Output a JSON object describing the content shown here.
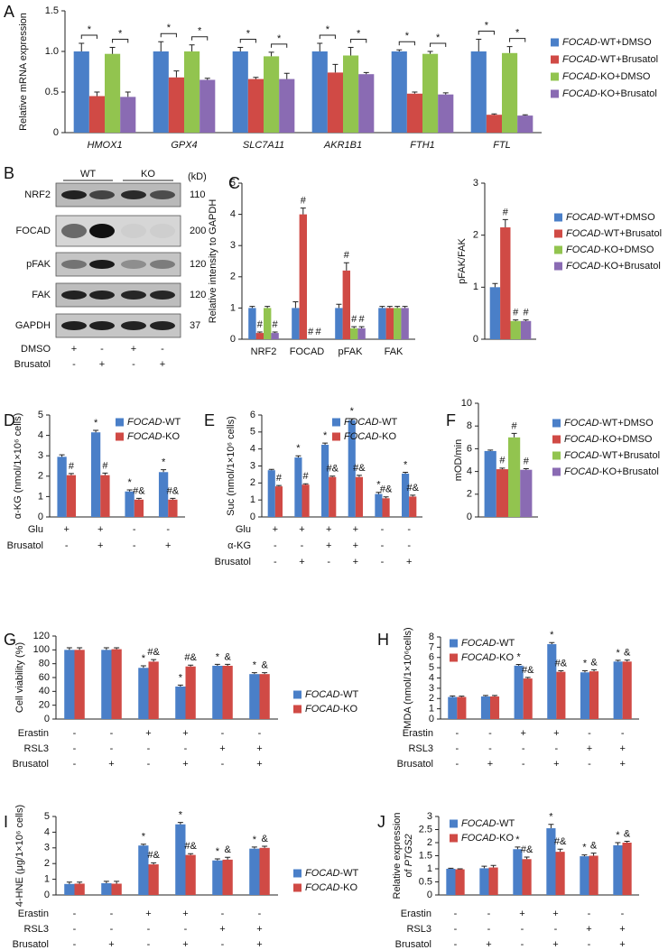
{
  "chart_data": [
    {
      "type": "bar",
      "panel": "A",
      "ylabel": "Relative mRNA expression",
      "categories": [
        "HMOX1",
        "GPX4",
        "SLC7A11",
        "AKR1B1",
        "FTH1",
        "FTL"
      ],
      "categories_italic": true,
      "series": [
        {
          "name": "FOCAD-WT+DMSO",
          "color": "#4a7fc8",
          "values": [
            1,
            1,
            1,
            1,
            1,
            1
          ],
          "errors": [
            0.1,
            0.12,
            0.05,
            0.1,
            0.02,
            0.15
          ]
        },
        {
          "name": "FOCAD-WT+Brusatol",
          "color": "#d04a45",
          "values": [
            0.45,
            0.68,
            0.66,
            0.74,
            0.48,
            0.22
          ],
          "errors": [
            0.05,
            0.08,
            0.02,
            0.1,
            0.02,
            0.01
          ]
        },
        {
          "name": "FOCAD-KO+DMSO",
          "color": "#92c44f",
          "values": [
            0.97,
            1,
            0.94,
            0.95,
            0.97,
            0.98
          ],
          "errors": [
            0.08,
            0.08,
            0.05,
            0.1,
            0.03,
            0.08
          ]
        },
        {
          "name": "FOCAD-KO+Brusatol",
          "color": "#8a6bb3",
          "values": [
            0.44,
            0.65,
            0.66,
            0.72,
            0.47,
            0.21
          ],
          "errors": [
            0.06,
            0.02,
            0.07,
            0.02,
            0.02,
            0.01
          ]
        }
      ],
      "brackets": [
        [
          "*",
          "*"
        ],
        [
          "*",
          "*"
        ],
        [
          "*",
          "*"
        ],
        [
          "*",
          "*"
        ],
        [
          "*",
          "*"
        ],
        [
          "*",
          "*"
        ]
      ],
      "ylim": [
        0,
        1.5
      ],
      "yticks": [
        0,
        0.5,
        {
          "value": 1,
          "label": "1.0"
        },
        1.5
      ],
      "legend": "right"
    },
    {
      "type": "blot",
      "panel": "B",
      "groups": [
        "WT",
        "KO"
      ],
      "unit": "(kD)",
      "rows": [
        {
          "name": "NRF2",
          "kd": 110
        },
        {
          "name": "FOCAD",
          "kd": 200
        },
        {
          "name": "pFAK",
          "kd": 120
        },
        {
          "name": "FAK",
          "kd": 120
        },
        {
          "name": "GAPDH",
          "kd": 37
        }
      ],
      "conditions": [
        {
          "label": "DMSO",
          "values": [
            "+",
            "-",
            "+",
            "-"
          ]
        },
        {
          "label": "Brusatol",
          "values": [
            "-",
            "+",
            "-",
            "+"
          ]
        }
      ]
    },
    {
      "type": "bar",
      "panel": "C",
      "ylabel": "Relative intensity to GAPDH",
      "categories": [
        "NRF2",
        "FOCAD",
        "pFAK",
        "FAK"
      ],
      "series": [
        {
          "color": "#4a7fc8",
          "values": [
            1,
            1,
            1,
            1
          ],
          "errors": [
            0.05,
            0.2,
            0.12,
            0.05
          ]
        },
        {
          "color": "#d04a45",
          "values": [
            0.2,
            4,
            2.2,
            1
          ],
          "errors": [
            0.03,
            0.2,
            0.25,
            0.05
          ],
          "markers": [
            "#",
            "#",
            "#",
            null
          ]
        },
        {
          "color": "#92c44f",
          "values": [
            1,
            0,
            0.35,
            1
          ],
          "errors": [
            0.05,
            0,
            0.05,
            0.05
          ],
          "markers": [
            null,
            "#",
            "#",
            null
          ]
        },
        {
          "color": "#8a6bb3",
          "values": [
            0.2,
            0,
            0.35,
            1
          ],
          "errors": [
            0.03,
            0,
            0.05,
            0.05
          ],
          "markers": [
            "#",
            "#",
            "#",
            null
          ]
        }
      ],
      "ylim": [
        0,
        5
      ],
      "yticks": [
        0,
        1,
        2,
        3,
        4,
        5
      ]
    },
    {
      "type": "bar",
      "ylabel": "pFAK/FAK",
      "categories": [
        null
      ],
      "series": [
        {
          "name": "FOCAD-WT+DMSO",
          "color": "#4a7fc8",
          "values": [
            1
          ],
          "errors": [
            0.07
          ]
        },
        {
          "name": "FOCAD-WT+Brusatol",
          "color": "#d04a45",
          "values": [
            2.15
          ],
          "errors": [
            0.15
          ],
          "markers": [
            "#"
          ]
        },
        {
          "name": "FOCAD-KO+DMSO",
          "color": "#92c44f",
          "values": [
            0.35
          ],
          "errors": [
            0.02
          ],
          "markers": [
            "#"
          ]
        },
        {
          "name": "FOCAD-KO+Brusatol",
          "color": "#8a6bb3",
          "values": [
            0.35
          ],
          "errors": [
            0.02
          ],
          "markers": [
            "#"
          ]
        }
      ],
      "ylim": [
        0,
        3
      ],
      "yticks": [
        0,
        1,
        2,
        3
      ],
      "legend": "right"
    },
    {
      "type": "bar",
      "panel": "D",
      "ylabel": "α-KG (nmol/1×10⁶ cells)",
      "categories": [
        null,
        null,
        null,
        null
      ],
      "series": [
        {
          "name": "FOCAD-WT",
          "color": "#4a7fc8",
          "values": [
            2.95,
            4.15,
            1.25,
            2.2
          ],
          "errors": [
            0.1,
            0.1,
            0.08,
            0.12
          ],
          "markers": [
            null,
            "*",
            "*",
            "*"
          ]
        },
        {
          "name": "FOCAD-KO",
          "color": "#d04a45",
          "values": [
            2.05,
            2.05,
            0.85,
            0.85
          ],
          "errors": [
            0.08,
            0.1,
            0.06,
            0.06
          ],
          "markers": [
            "#",
            "#",
            "#&",
            "#&"
          ]
        }
      ],
      "ylim": [
        0,
        5
      ],
      "yticks": [
        0,
        1,
        2,
        3,
        4,
        5
      ],
      "legend": "top-right",
      "conditions": [
        {
          "label": "Glu",
          "values": [
            "+",
            "+",
            "-",
            "-"
          ]
        },
        {
          "label": "Brusatol",
          "values": [
            "-",
            "+",
            "-",
            "+"
          ]
        }
      ]
    },
    {
      "type": "bar",
      "panel": "E",
      "ylabel": "Suc (nmol/1×10⁶ cells)",
      "categories": [
        null,
        null,
        null,
        null,
        null,
        null
      ],
      "series": [
        {
          "name": "FOCAD-WT",
          "color": "#4a7fc8",
          "values": [
            2.75,
            3.5,
            4.25,
            5.7,
            1.35,
            2.55
          ],
          "errors": [
            0.05,
            0.1,
            0.1,
            0.08,
            0.1,
            0.08
          ],
          "markers": [
            null,
            "*",
            "*",
            "*",
            "*",
            "*"
          ]
        },
        {
          "name": "FOCAD-KO",
          "color": "#d04a45",
          "values": [
            1.8,
            1.9,
            2.35,
            2.35,
            1.1,
            1.2
          ],
          "errors": [
            0.05,
            0.05,
            0.05,
            0.1,
            0.08,
            0.08
          ],
          "markers": [
            "#",
            "#",
            "#&",
            "#&",
            "#&",
            "#&"
          ]
        }
      ],
      "ylim": [
        0,
        6
      ],
      "yticks": [
        0,
        1,
        2,
        3,
        4,
        5,
        6
      ],
      "legend": "top-right",
      "conditions": [
        {
          "label": "Glu",
          "values": [
            "+",
            "+",
            "+",
            "+",
            "-",
            "-"
          ]
        },
        {
          "label": "α-KG",
          "values": [
            "-",
            "-",
            "+",
            "+",
            "-",
            "-"
          ]
        },
        {
          "label": "Brusatol",
          "values": [
            "-",
            "+",
            "-",
            "+",
            "-",
            "+"
          ]
        }
      ]
    },
    {
      "type": "bar",
      "panel": "F",
      "ylabel": "mOD/min",
      "categories": [
        null
      ],
      "series": [
        {
          "name": "FOCAD-WT+DMSO",
          "color": "#4a7fc8",
          "values": [
            5.8
          ],
          "errors": [
            0.08
          ]
        },
        {
          "name": "FOCAD-KO+DMSO",
          "color": "#d04a45",
          "values": [
            4.2
          ],
          "errors": [
            0.1
          ],
          "markers": [
            "#"
          ]
        },
        {
          "name": "FOCAD-WT+Brusatol",
          "color": "#92c44f",
          "values": [
            7
          ],
          "errors": [
            0.35
          ],
          "markers": [
            "#"
          ]
        },
        {
          "name": "FOCAD-KO+Brusatol",
          "color": "#8a6bb3",
          "values": [
            4.15
          ],
          "errors": [
            0.1
          ],
          "markers": [
            "#"
          ]
        }
      ],
      "ylim": [
        0,
        10
      ],
      "yticks": [
        0,
        2,
        4,
        6,
        8,
        10
      ],
      "legend": "right"
    },
    {
      "type": "bar",
      "panel": "G",
      "ylabel": "Cell viability (%)",
      "categories": [
        null,
        null,
        null,
        null,
        null,
        null
      ],
      "series": [
        {
          "name": "FOCAD-WT",
          "color": "#4a7fc8",
          "values": [
            100,
            100,
            74,
            47,
            77,
            65
          ],
          "errors": [
            3,
            3,
            3,
            2,
            2,
            2
          ],
          "markers": [
            null,
            null,
            "*",
            "*",
            "*",
            "*"
          ]
        },
        {
          "name": "FOCAD-KO",
          "color": "#d04a45",
          "values": [
            100,
            101,
            83,
            76,
            77,
            65
          ],
          "errors": [
            3,
            2,
            3,
            2,
            2,
            2
          ],
          "markers": [
            null,
            null,
            "#&",
            "#&",
            "&",
            "&"
          ]
        }
      ],
      "ylim": [
        0,
        120
      ],
      "yticks": [
        0,
        20,
        40,
        60,
        80,
        100,
        120
      ],
      "legend": "right",
      "conditions": [
        {
          "label": "Erastin",
          "values": [
            "-",
            "-",
            "+",
            "+",
            "-",
            "-"
          ]
        },
        {
          "label": "RSL3",
          "values": [
            "-",
            "-",
            "-",
            "-",
            "+",
            "+"
          ]
        },
        {
          "label": "Brusatol",
          "values": [
            "-",
            "+",
            "-",
            "+",
            "-",
            "+"
          ]
        }
      ]
    },
    {
      "type": "bar",
      "panel": "H",
      "ylabel": "MDA (nmol/1×10⁶cells)",
      "categories": [
        null,
        null,
        null,
        null,
        null,
        null
      ],
      "series": [
        {
          "name": "FOCAD-WT",
          "color": "#4a7fc8",
          "values": [
            2.15,
            2.2,
            5.2,
            7.3,
            4.55,
            5.6
          ],
          "errors": [
            0.1,
            0.1,
            0.12,
            0.15,
            0.15,
            0.12
          ],
          "markers": [
            null,
            null,
            "*",
            "*",
            "*",
            "*"
          ]
        },
        {
          "name": "FOCAD-KO",
          "color": "#d04a45",
          "values": [
            2.15,
            2.2,
            3.95,
            4.6,
            4.65,
            5.6
          ],
          "errors": [
            0.08,
            0.1,
            0.1,
            0.1,
            0.15,
            0.15
          ],
          "markers": [
            null,
            null,
            "#&",
            "#&",
            "&",
            "&"
          ]
        }
      ],
      "ylim": [
        0,
        8
      ],
      "yticks": [
        0,
        1,
        2,
        3,
        4,
        5,
        6,
        7,
        8
      ],
      "legend": "top-left",
      "conditions": [
        {
          "label": "Erastin",
          "values": [
            "-",
            "-",
            "+",
            "+",
            "-",
            "-"
          ]
        },
        {
          "label": "RSL3",
          "values": [
            "-",
            "-",
            "-",
            "-",
            "+",
            "+"
          ]
        },
        {
          "label": "Brusatol",
          "values": [
            "-",
            "+",
            "-",
            "+",
            "-",
            "+"
          ]
        }
      ]
    },
    {
      "type": "bar",
      "panel": "I",
      "ylabel": "4-HNE (μg/1×10⁶ cells)",
      "categories": [
        null,
        null,
        null,
        null,
        null,
        null
      ],
      "series": [
        {
          "name": "FOCAD-WT",
          "color": "#4a7fc8",
          "values": [
            0.7,
            0.75,
            3.15,
            4.5,
            2.2,
            2.95
          ],
          "errors": [
            0.12,
            0.12,
            0.08,
            0.12,
            0.1,
            0.1
          ],
          "markers": [
            null,
            null,
            "*",
            "*",
            "*",
            "*"
          ]
        },
        {
          "name": "FOCAD-KO",
          "color": "#d04a45",
          "values": [
            0.72,
            0.72,
            1.95,
            2.55,
            2.25,
            3
          ],
          "errors": [
            0.1,
            0.15,
            0.1,
            0.08,
            0.15,
            0.1
          ],
          "markers": [
            null,
            null,
            "#&",
            "#&",
            "&",
            "&"
          ]
        }
      ],
      "ylim": [
        0,
        5
      ],
      "yticks": [
        0,
        1,
        2,
        3,
        4,
        5
      ],
      "legend": "right",
      "conditions": [
        {
          "label": "Erastin",
          "values": [
            "-",
            "-",
            "+",
            "+",
            "-",
            "-"
          ]
        },
        {
          "label": "RSL3",
          "values": [
            "-",
            "-",
            "-",
            "-",
            "+",
            "+"
          ]
        },
        {
          "label": "Brusatol",
          "values": [
            "-",
            "+",
            "-",
            "+",
            "-",
            "+"
          ]
        }
      ]
    },
    {
      "type": "bar",
      "panel": "J",
      "ylabel": [
        "Relative expression",
        "of PTGS2"
      ],
      "categories": [
        null,
        null,
        null,
        null,
        null,
        null
      ],
      "series": [
        {
          "name": "FOCAD-WT",
          "color": "#4a7fc8",
          "values": [
            1,
            1.02,
            1.75,
            2.55,
            1.48,
            1.9
          ],
          "errors": [
            0.02,
            0.08,
            0.08,
            0.15,
            0.05,
            0.1
          ],
          "markers": [
            null,
            null,
            "*",
            "*",
            "*",
            "*"
          ]
        },
        {
          "name": "FOCAD-KO",
          "color": "#d04a45",
          "values": [
            0.98,
            1.05,
            1.37,
            1.65,
            1.5,
            2
          ],
          "errors": [
            0.02,
            0.08,
            0.08,
            0.1,
            0.1,
            0.05
          ],
          "markers": [
            null,
            null,
            "#&",
            "#&",
            "&",
            "&"
          ]
        }
      ],
      "ylim": [
        0,
        3
      ],
      "yticks": [
        0,
        0.5,
        1,
        1.5,
        2,
        2.5,
        3
      ],
      "legend": "top-left",
      "conditions": [
        {
          "label": "Erastin",
          "values": [
            "-",
            "-",
            "+",
            "+",
            "-",
            "-"
          ]
        },
        {
          "label": "RSL3",
          "values": [
            "-",
            "-",
            "-",
            "-",
            "+",
            "+"
          ]
        },
        {
          "label": "Brusatol",
          "values": [
            "-",
            "+",
            "-",
            "+",
            "-",
            "+"
          ]
        }
      ]
    }
  ]
}
